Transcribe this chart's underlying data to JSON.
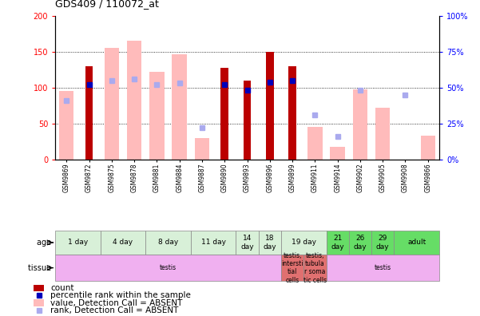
{
  "title": "GDS409 / 110072_at",
  "samples": [
    "GSM9869",
    "GSM9872",
    "GSM9875",
    "GSM9878",
    "GSM9881",
    "GSM9884",
    "GSM9887",
    "GSM9890",
    "GSM9893",
    "GSM9896",
    "GSM9899",
    "GSM9911",
    "GSM9914",
    "GSM9902",
    "GSM9905",
    "GSM9908",
    "GSM9866"
  ],
  "count_present": [
    null,
    130,
    null,
    null,
    null,
    null,
    null,
    128,
    110,
    150,
    130,
    null,
    null,
    null,
    null,
    null,
    null
  ],
  "count_absent": [
    95,
    null,
    155,
    165,
    122,
    147,
    30,
    null,
    null,
    null,
    null,
    45,
    18,
    98,
    72,
    null,
    33
  ],
  "rank_present": [
    null,
    52,
    null,
    null,
    null,
    null,
    null,
    52,
    48,
    54,
    55,
    null,
    null,
    null,
    null,
    null,
    null
  ],
  "rank_absent": [
    41,
    null,
    55,
    56,
    52,
    53,
    22,
    null,
    null,
    null,
    null,
    31,
    16,
    48,
    null,
    45,
    null
  ],
  "age_groups": [
    {
      "label": "1 day",
      "start": 0,
      "end": 2,
      "color": "#d8f0d8"
    },
    {
      "label": "4 day",
      "start": 2,
      "end": 4,
      "color": "#d8f0d8"
    },
    {
      "label": "8 day",
      "start": 4,
      "end": 6,
      "color": "#d8f0d8"
    },
    {
      "label": "11 day",
      "start": 6,
      "end": 8,
      "color": "#d8f0d8"
    },
    {
      "label": "14\nday",
      "start": 8,
      "end": 9,
      "color": "#d8f0d8"
    },
    {
      "label": "18\nday",
      "start": 9,
      "end": 10,
      "color": "#d8f0d8"
    },
    {
      "label": "19 day",
      "start": 10,
      "end": 12,
      "color": "#d8f0d8"
    },
    {
      "label": "21\nday",
      "start": 12,
      "end": 13,
      "color": "#66dd66"
    },
    {
      "label": "26\nday",
      "start": 13,
      "end": 14,
      "color": "#66dd66"
    },
    {
      "label": "29\nday",
      "start": 14,
      "end": 15,
      "color": "#66dd66"
    },
    {
      "label": "adult",
      "start": 15,
      "end": 17,
      "color": "#66dd66"
    }
  ],
  "tissue_groups": [
    {
      "label": "testis",
      "start": 0,
      "end": 10,
      "color": "#f0b0f0"
    },
    {
      "label": "testis,\nintersti\ntial\ncells",
      "start": 10,
      "end": 11,
      "color": "#e07070"
    },
    {
      "label": "testis,\ntubula\nr soma\ntic cells",
      "start": 11,
      "end": 12,
      "color": "#e07070"
    },
    {
      "label": "testis",
      "start": 12,
      "end": 17,
      "color": "#f0b0f0"
    }
  ],
  "bar_color_present": "#bb0000",
  "bar_color_absent": "#ffbbbb",
  "rank_color_present": "#0000bb",
  "rank_color_absent": "#aaaaee",
  "chart_bg": "#ffffff",
  "grid_color": "#000000"
}
